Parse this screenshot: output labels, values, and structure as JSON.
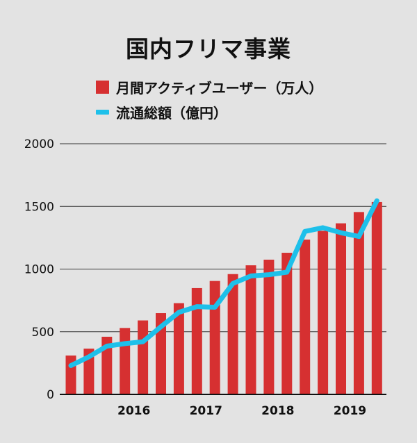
{
  "chart_data": {
    "type": "bar",
    "title": "国内フリマ事業",
    "series": [
      {
        "name": "月間アクティブユーザー（万人）",
        "type": "bar",
        "color": "#d63031",
        "values": [
          310,
          365,
          460,
          530,
          590,
          648,
          728,
          848,
          905,
          960,
          1030,
          1075,
          1130,
          1235,
          1305,
          1365,
          1455,
          1535
        ]
      },
      {
        "name": "流通総額（億円）",
        "type": "line",
        "color": "#1ec0ea",
        "values": [
          230,
          300,
          385,
          405,
          420,
          540,
          655,
          700,
          695,
          885,
          945,
          955,
          975,
          1300,
          1330,
          1290,
          1260,
          1545
        ]
      }
    ],
    "year_labels": [
      {
        "label": "2016",
        "start": 2,
        "end": 5
      },
      {
        "label": "2017",
        "start": 6,
        "end": 9
      },
      {
        "label": "2018",
        "start": 10,
        "end": 13
      },
      {
        "label": "2019",
        "start": 14,
        "end": 17
      }
    ],
    "y_ticks": [
      "0",
      "500",
      "1000",
      "1500",
      "2000"
    ],
    "ylim": [
      0,
      2000
    ],
    "grid": true,
    "legend_position": "top-left"
  }
}
